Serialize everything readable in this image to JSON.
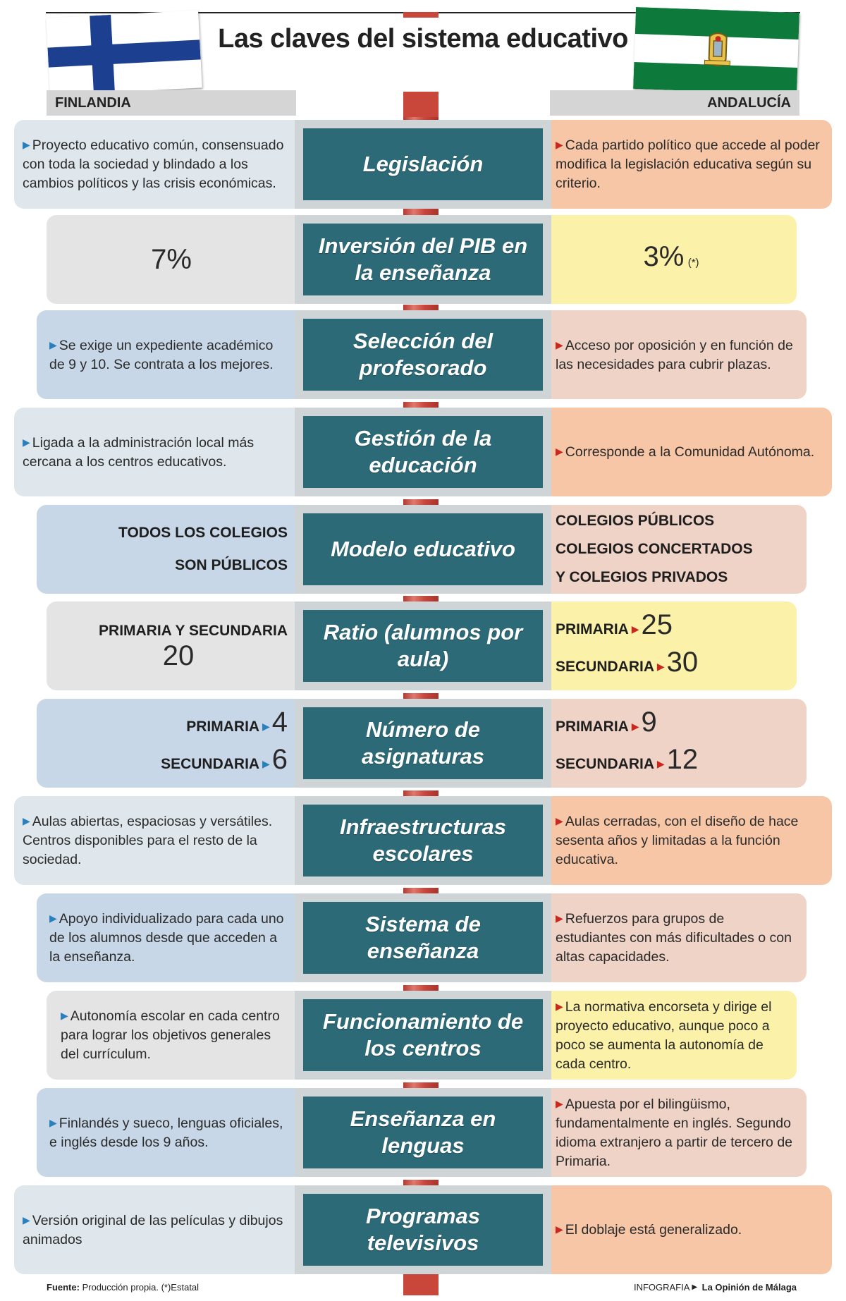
{
  "title": "Las claves del sistema educativo",
  "columns": {
    "left": "FINLANDIA",
    "right": "ANDALUCÍA"
  },
  "colors": {
    "spine": "#c9463b",
    "center_box": "#2c6a78",
    "center_bg": "#cfd4d6",
    "arrow_left": "#2a7fbd",
    "arrow_right": "#c8281e",
    "left_light": "#dfe7ec",
    "left_blue": "#c7d7e7",
    "left_gray": "#e4e4e4",
    "right_orange": "#f6c6a6",
    "right_yellow": "#fbf1a8",
    "right_pink": "#efd3c6"
  },
  "rows": [
    {
      "label": "Legislación",
      "left": "Proyecto educativo común, consensuado con toda la sociedad y blindado a los cambios políticos y las crisis económicas.",
      "right": "Cada partido político que accede al poder modifica la legislación educativa según su criterio."
    },
    {
      "label": "Inversión del PIB en la enseñanza",
      "left": "7%",
      "right": "3%",
      "right_note": "(*)"
    },
    {
      "label": "Selección del profesorado",
      "left": "Se exige un expediente académico de 9 y 10. Se contrata a los mejores.",
      "right": "Acceso por oposición y en función de las necesidades para cubrir plazas."
    },
    {
      "label": "Gestión de la educación",
      "left": "Ligada a la administración local más cercana a los centros educativos.",
      "right": "Corresponde a la Comunidad Autónoma."
    },
    {
      "label": "Modelo educativo",
      "left_lines": [
        "TODOS LOS COLEGIOS",
        "SON PÚBLICOS"
      ],
      "right_lines": [
        "COLEGIOS PÚBLICOS",
        "COLEGIOS CONCERTADOS",
        "Y COLEGIOS PRIVADOS"
      ]
    },
    {
      "label": "Ratio (alumnos por aula)",
      "left_head": "PRIMARIA Y SECUNDARIA",
      "left_value": "20",
      "right_primaria_label": "PRIMARIA",
      "right_primaria": "25",
      "right_secundaria_label": "SECUNDARIA",
      "right_secundaria": "30"
    },
    {
      "label": "Número de asignaturas",
      "left_primaria_label": "PRIMARIA",
      "left_primaria": "4",
      "left_secundaria_label": "SECUNDARIA",
      "left_secundaria": "6",
      "right_primaria_label": "PRIMARIA",
      "right_primaria": "9",
      "right_secundaria_label": "SECUNDARIA",
      "right_secundaria": "12"
    },
    {
      "label": "Infraestructuras escolares",
      "left": "Aulas abiertas, espaciosas y versátiles. Centros disponibles para el resto de la sociedad.",
      "right": "Aulas cerradas, con el diseño de hace sesenta años y limitadas a la función educativa."
    },
    {
      "label": "Sistema de enseñanza",
      "left": "Apoyo individualizado para cada uno de los alumnos desde que acceden a la enseñanza.",
      "right": "Refuerzos para grupos de estudiantes con más dificultades o con altas capacidades."
    },
    {
      "label": "Funcionamiento de los centros",
      "left": "Autonomía escolar en cada centro para lograr los objetivos generales del currículum.",
      "right": "La normativa encorseta y dirige el proyecto educativo, aunque poco a poco se aumenta la autonomía de cada centro."
    },
    {
      "label": "Enseñanza en lenguas",
      "left": "Finlandés y sueco, lenguas oficiales, e inglés desde los 9 años.",
      "right": "Apuesta por el bilingüismo, fundamentalmente en inglés. Segundo idioma extranjero a partir de tercero de Primaria."
    },
    {
      "label": "Programas televisivos",
      "left": "Versión original de las películas y dibujos animados",
      "right": "El doblaje está generalizado."
    }
  ],
  "footer": {
    "source_label": "Fuente:",
    "source_text": "Producción propia. (*)Estatal",
    "credit_label": "INFOGRAFIA",
    "credit_brand": "La Opinión de Málaga"
  }
}
